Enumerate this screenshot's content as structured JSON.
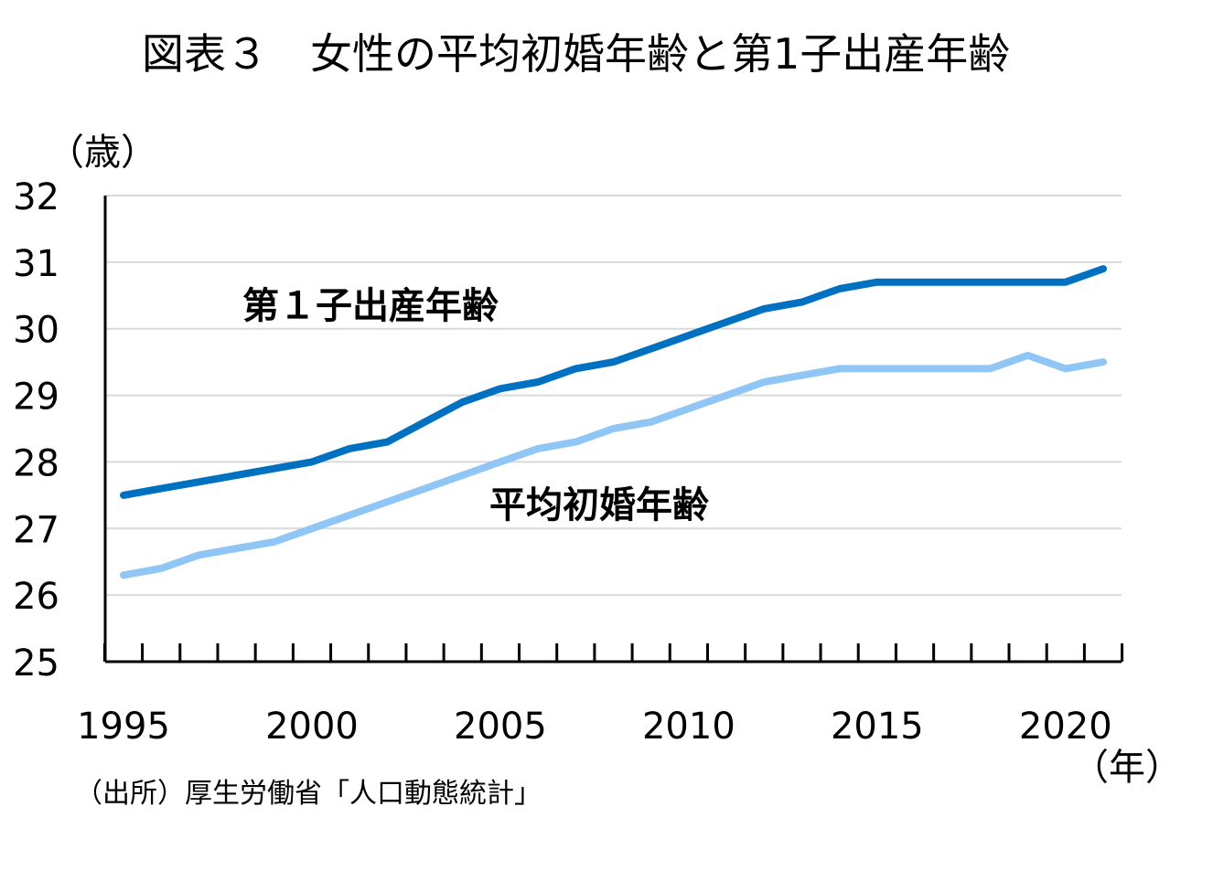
{
  "chart_data": {
    "type": "line",
    "title": "図表３　女性の平均初婚年齢と第1子出産年齢",
    "ylabel": "（歳）",
    "xlabel": "（年）",
    "source": "（出所）厚生労働省「人口動態統計」",
    "ylim": [
      25,
      32
    ],
    "yticks": [
      25,
      26,
      27,
      28,
      29,
      30,
      31,
      32
    ],
    "xlim": [
      1995,
      2021
    ],
    "xtick_labels": [
      1995,
      2000,
      2005,
      2010,
      2015,
      2020
    ],
    "grid": true,
    "x": [
      1995,
      1996,
      1997,
      1998,
      1999,
      2000,
      2001,
      2002,
      2003,
      2004,
      2005,
      2006,
      2007,
      2008,
      2009,
      2010,
      2011,
      2012,
      2013,
      2014,
      2015,
      2016,
      2017,
      2018,
      2019,
      2020,
      2021
    ],
    "series": [
      {
        "name": "第１子出産年齢",
        "color": "#0070c0",
        "values": [
          27.5,
          27.6,
          27.7,
          27.8,
          27.9,
          28.0,
          28.2,
          28.3,
          28.6,
          28.9,
          29.1,
          29.2,
          29.4,
          29.5,
          29.7,
          29.9,
          30.1,
          30.3,
          30.4,
          30.6,
          30.7,
          30.7,
          30.7,
          30.7,
          30.7,
          30.7,
          30.9
        ]
      },
      {
        "name": "平均初婚年齢",
        "color": "#8fc6f5",
        "values": [
          26.3,
          26.4,
          26.6,
          26.7,
          26.8,
          27.0,
          27.2,
          27.4,
          27.6,
          27.8,
          28.0,
          28.2,
          28.3,
          28.5,
          28.6,
          28.8,
          29.0,
          29.2,
          29.3,
          29.4,
          29.4,
          29.4,
          29.4,
          29.4,
          29.6,
          29.4,
          29.5
        ]
      }
    ]
  }
}
